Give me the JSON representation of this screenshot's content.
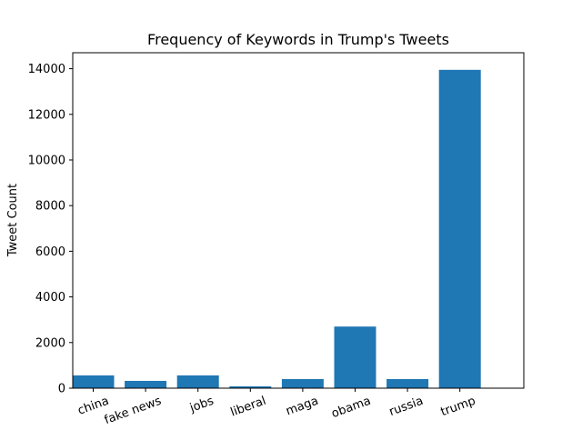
{
  "chart_data": {
    "type": "bar",
    "title": "Frequency of Keywords in Trump's Tweets",
    "xlabel": "",
    "ylabel": "Tweet Count",
    "categories": [
      "china",
      "fake news",
      "jobs",
      "liberal",
      "maga",
      "obama",
      "russia",
      "trump"
    ],
    "values": [
      560,
      320,
      560,
      80,
      400,
      2700,
      400,
      13950
    ],
    "ylim": [
      0,
      14700
    ],
    "yticks": [
      0,
      2000,
      4000,
      6000,
      8000,
      10000,
      12000,
      14000
    ],
    "bar_color": "#1f77b4",
    "grid": false,
    "legend": "none"
  }
}
